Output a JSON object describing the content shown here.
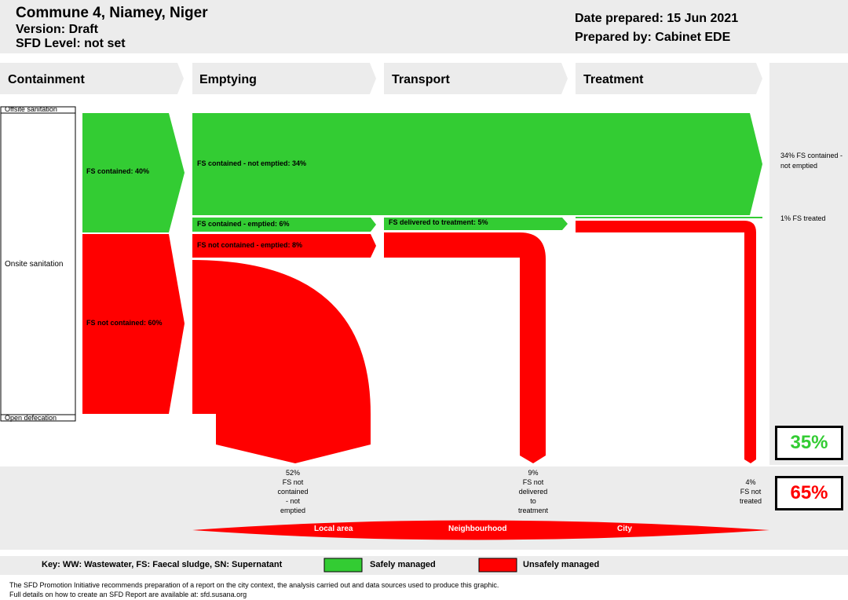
{
  "header": {
    "title": "Commune 4, Niamey, Niger",
    "version": "Version: Draft",
    "sfd_level": "SFD Level: not set",
    "date_prepared": "Date prepared: 15 Jun 2021",
    "prepared_by": "Prepared by: Cabinet EDE"
  },
  "stages": [
    "Containment",
    "Emptying",
    "Transport",
    "Treatment"
  ],
  "containment_side": {
    "offsite": "Offsite sanitation",
    "onsite": "Onsite sanitation",
    "open_defecation": "Open defecation"
  },
  "flows": {
    "fs_contained": "FS contained: 40%",
    "fs_not_contained": "FS not contained: 60%",
    "contained_not_emptied": "FS contained - not emptied: 34%",
    "contained_emptied": "FS contained - emptied: 6%",
    "not_contained_emptied": "FS not contained - emptied: 8%",
    "delivered_to_treatment": "FS delivered to treatment: 5%"
  },
  "outcomes_right": {
    "contained_not_emptied": "34% FS contained - not emptied",
    "treated": "1% FS treated"
  },
  "losses": {
    "not_contained_not_emptied": [
      "52%",
      "FS not",
      "contained",
      "- not",
      "emptied"
    ],
    "not_delivered": [
      "9%",
      "FS not",
      "delivered",
      "to",
      "treatment"
    ],
    "not_treated": [
      "4%",
      "FS not",
      "treated"
    ]
  },
  "totals": {
    "safe": "35%",
    "unsafe": "65%",
    "safe_color": "#33cc33",
    "unsafe_color": "#ff0000"
  },
  "scale": [
    "Local area",
    "Neighbourhood",
    "City"
  ],
  "key": {
    "text": "Key: WW: Wastewater, FS: Faecal sludge, SN: Supernatant",
    "safe": "Safely managed",
    "unsafe": "Unsafely managed"
  },
  "footer": {
    "line1": "The SFD Promotion Initiative recommends preparation of a report on the city context, the analysis carried out and data sources used to produce this graphic.",
    "line2": "Full details on how to create an SFD Report are available at: sfd.susana.org"
  },
  "chart_data": {
    "type": "sankey",
    "flows": [
      {
        "from": "Containment",
        "label": "FS contained",
        "value": 40,
        "safe": true
      },
      {
        "from": "Containment",
        "label": "FS not contained",
        "value": 60,
        "safe": false
      },
      {
        "from": "Emptying",
        "label": "FS contained - not emptied",
        "value": 34,
        "safe": true
      },
      {
        "from": "Emptying",
        "label": "FS contained - emptied",
        "value": 6,
        "safe": true
      },
      {
        "from": "Emptying",
        "label": "FS not contained - emptied",
        "value": 8,
        "safe": false
      },
      {
        "from": "Transport",
        "label": "FS delivered to treatment",
        "value": 5,
        "safe": true
      },
      {
        "from": "Treatment",
        "label": "FS treated",
        "value": 1,
        "safe": true
      },
      {
        "from": "Emptying",
        "label": "FS not contained - not emptied",
        "value": 52,
        "safe": false
      },
      {
        "from": "Transport",
        "label": "FS not delivered to treatment",
        "value": 9,
        "safe": false
      },
      {
        "from": "Treatment",
        "label": "FS not treated",
        "value": 4,
        "safe": false
      }
    ],
    "safely_managed_pct": 35,
    "unsafely_managed_pct": 65
  }
}
